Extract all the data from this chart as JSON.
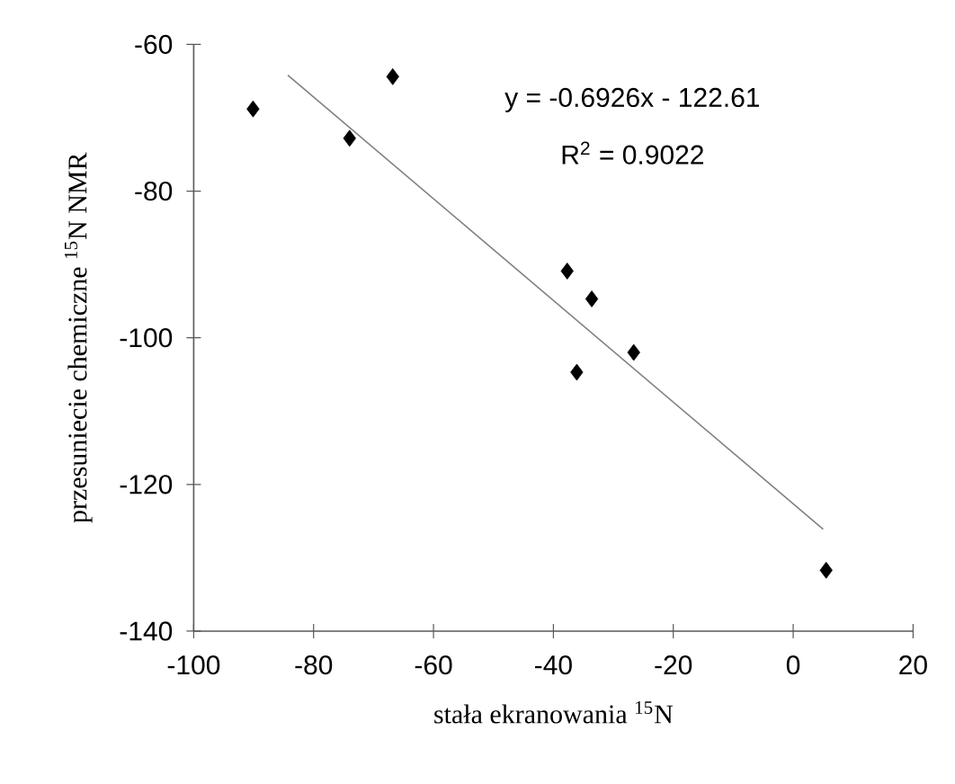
{
  "chart_data": {
    "type": "scatter",
    "xlabel": "stała ekranowania $^{15}$N",
    "ylabel": "przesuniecie chemiczne  $^{15}$N NMR",
    "annotations": [
      "y = -0.6926x - 122.61",
      "R$^{2}$ = 0.9022"
    ],
    "xlim": [
      -100,
      20
    ],
    "xticks": [
      -100,
      -80,
      -60,
      -40,
      -20,
      0,
      20
    ],
    "ylim": [
      -140,
      -60
    ],
    "yticks": [
      -140,
      -120,
      -100,
      -80,
      -60
    ],
    "grid": false,
    "series": [
      {
        "marker": "diamond",
        "color": "#000000",
        "x": [
          -90.1,
          -74,
          -66.8,
          -37.7,
          -33.6,
          -26.6,
          -36.1,
          5.5
        ],
        "values": [
          -68.8,
          -72.8,
          -64.4,
          -90.9,
          -94.7,
          -102.0,
          -104.7,
          -131.7
        ]
      },
      {
        "type": "line",
        "marker": "none",
        "color": "#808080",
        "x": [
          -84.3,
          5.0
        ],
        "values": [
          -64.2,
          -126.1
        ]
      }
    ]
  }
}
